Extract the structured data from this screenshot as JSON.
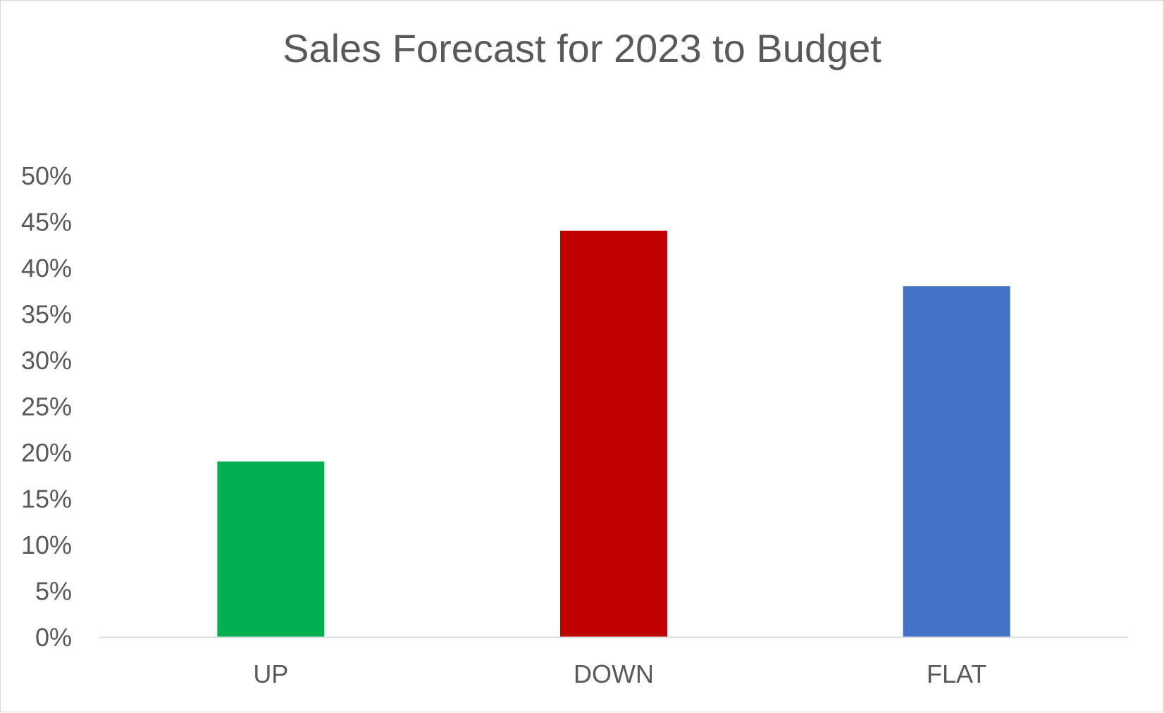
{
  "chart_data": {
    "type": "bar",
    "title": "Sales Forecast for 2023 to Budget",
    "categories": [
      "UP",
      "DOWN",
      "FLAT"
    ],
    "values": [
      19,
      44,
      38
    ],
    "unit": "%",
    "ylim": [
      0,
      50
    ],
    "yticks": [
      "0%",
      "5%",
      "10%",
      "15%",
      "20%",
      "25%",
      "30%",
      "35%",
      "40%",
      "45%",
      "50%"
    ],
    "bar_colors": [
      "#00B050",
      "#C00000",
      "#4472C4"
    ],
    "grid": false,
    "legend": "none"
  }
}
